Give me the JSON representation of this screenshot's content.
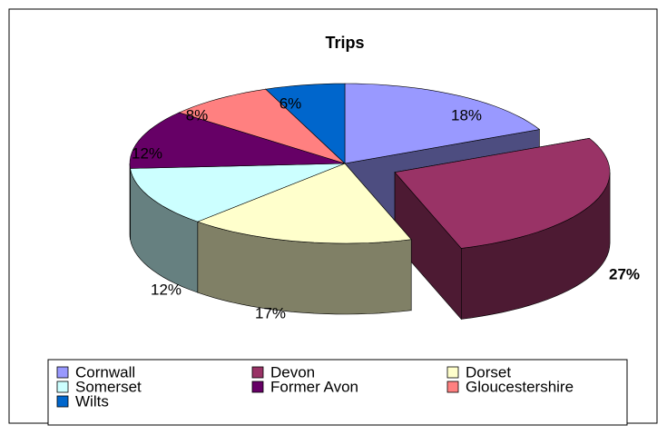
{
  "chart_data": {
    "type": "pie",
    "title": "Trips",
    "categories": [
      "Cornwall",
      "Devon",
      "Dorset",
      "Somerset",
      "Former Avon",
      "Gloucestershire",
      "Wilts"
    ],
    "values": [
      18,
      27,
      17,
      12,
      12,
      8,
      6
    ],
    "value_labels": [
      "18%",
      "27%",
      "17%",
      "12%",
      "12%",
      "8%",
      "6%"
    ],
    "colors": [
      "#9999ff",
      "#993366",
      "#ffffcc",
      "#ccffff",
      "#660066",
      "#ff8080",
      "#0066cc"
    ],
    "exploded": [
      1
    ],
    "legend": "bottom"
  }
}
